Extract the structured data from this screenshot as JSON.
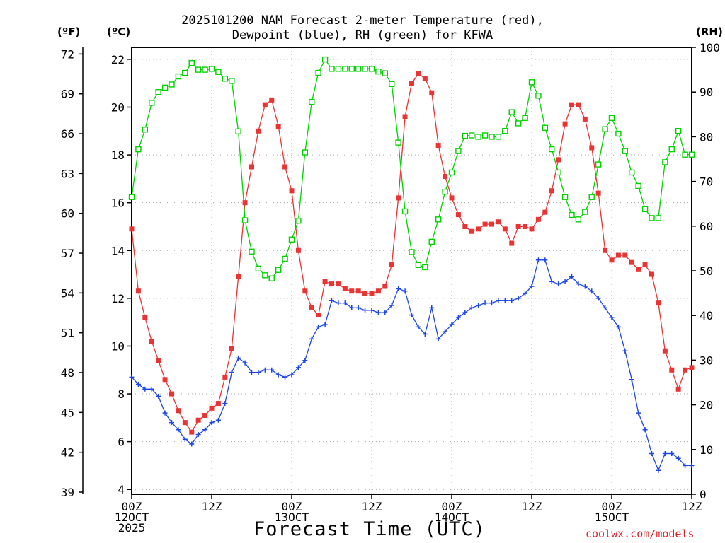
{
  "header": {
    "title_line1": "2025101200 NAM Forecast 2-meter Temperature (red),",
    "title_line2": "Dewpoint (blue), RH (green) for KFWA",
    "unit_f": "(ºF)",
    "unit_c": "(ºC)",
    "unit_rh": "(RH)"
  },
  "footer": {
    "xlabel": "Forecast Time (UTC)",
    "credit": "coolwx.com/models"
  },
  "chart_data": {
    "type": "line",
    "title": "2025101200 NAM Forecast 2-meter Temperature (red), Dewpoint (blue), RH (green) for KFWA",
    "xlabel": "Forecast Time (UTC)",
    "x_unit": "forecast hour",
    "xlim": [
      0,
      84
    ],
    "x_ticks": [
      {
        "x": 0,
        "lines": [
          "00Z",
          "12OCT",
          "2025"
        ]
      },
      {
        "x": 12,
        "lines": [
          "12Z"
        ]
      },
      {
        "x": 24,
        "lines": [
          "00Z",
          "13OCT"
        ]
      },
      {
        "x": 36,
        "lines": [
          "12Z"
        ]
      },
      {
        "x": 48,
        "lines": [
          "00Z",
          "14OCT"
        ]
      },
      {
        "x": 60,
        "lines": [
          "12Z"
        ]
      },
      {
        "x": 72,
        "lines": [
          "00Z",
          "15OCT"
        ]
      },
      {
        "x": 84,
        "lines": [
          "12Z"
        ]
      }
    ],
    "y_axes": {
      "fahrenheit": {
        "label": "(ºF)",
        "ticks": [
          39,
          42,
          45,
          48,
          51,
          54,
          57,
          60,
          63,
          66,
          69,
          72
        ]
      },
      "celsius": {
        "label": "(ºC)",
        "ylim": [
          3.8,
          22.5
        ],
        "ticks": [
          4,
          6,
          8,
          10,
          12,
          14,
          16,
          18,
          20,
          22
        ]
      },
      "rh": {
        "label": "(RH)",
        "ylim": [
          0,
          100
        ],
        "ticks": [
          0,
          10,
          20,
          30,
          40,
          50,
          60,
          70,
          80,
          90,
          100
        ]
      }
    },
    "grid": true,
    "series": [
      {
        "name": "Temperature",
        "axis": "celsius",
        "color": "#ea3434",
        "marker": "filled-square",
        "x": [
          0,
          1,
          2,
          3,
          4,
          5,
          6,
          7,
          8,
          9,
          10,
          11,
          12,
          13,
          14,
          15,
          16,
          17,
          18,
          19,
          20,
          21,
          22,
          23,
          24,
          25,
          26,
          27,
          28,
          29,
          30,
          31,
          32,
          33,
          34,
          35,
          36,
          37,
          38,
          39,
          40,
          41,
          42,
          43,
          44,
          45,
          46,
          47,
          48,
          49,
          50,
          51,
          52,
          53,
          54,
          55,
          56,
          57,
          58,
          59,
          60,
          61,
          62,
          63,
          64,
          65,
          66,
          67,
          68,
          69,
          70,
          71,
          72,
          73,
          74,
          75,
          76,
          77,
          78,
          79,
          80,
          81,
          82,
          83,
          84
        ],
        "values": [
          14.9,
          12.3,
          11.2,
          10.2,
          9.4,
          8.6,
          8.0,
          7.3,
          6.8,
          6.4,
          6.9,
          7.1,
          7.4,
          7.6,
          8.7,
          9.9,
          12.9,
          16.0,
          17.5,
          19.0,
          20.1,
          20.3,
          19.2,
          17.5,
          16.5,
          14.0,
          12.3,
          11.6,
          11.3,
          12.7,
          12.6,
          12.6,
          12.4,
          12.3,
          12.3,
          12.2,
          12.2,
          12.3,
          12.5,
          13.4,
          16.2,
          19.6,
          21.0,
          21.4,
          21.2,
          20.6,
          18.4,
          17.1,
          16.2,
          15.5,
          15.0,
          14.8,
          14.9,
          15.1,
          15.1,
          15.2,
          14.9,
          14.3,
          15.0,
          15.0,
          14.9,
          15.3,
          15.6,
          16.5,
          17.8,
          19.3,
          20.1,
          20.1,
          19.5,
          18.3,
          16.4,
          14.0,
          13.6,
          13.8,
          13.8,
          13.5,
          13.2,
          13.4,
          13.0,
          11.8,
          9.8,
          9.0,
          8.2,
          9.0,
          9.1
        ]
      },
      {
        "name": "Dewpoint",
        "axis": "celsius",
        "color": "#1e46e6",
        "marker": "plus",
        "x": [
          0,
          1,
          2,
          3,
          4,
          5,
          6,
          7,
          8,
          9,
          10,
          11,
          12,
          13,
          14,
          15,
          16,
          17,
          18,
          19,
          20,
          21,
          22,
          23,
          24,
          25,
          26,
          27,
          28,
          29,
          30,
          31,
          32,
          33,
          34,
          35,
          36,
          37,
          38,
          39,
          40,
          41,
          42,
          43,
          44,
          45,
          46,
          47,
          48,
          49,
          50,
          51,
          52,
          53,
          54,
          55,
          56,
          57,
          58,
          59,
          60,
          61,
          62,
          63,
          64,
          65,
          66,
          67,
          68,
          69,
          70,
          71,
          72,
          73,
          74,
          75,
          76,
          77,
          78,
          79,
          80,
          81,
          82,
          83,
          84
        ],
        "values": [
          8.7,
          8.4,
          8.2,
          8.2,
          7.9,
          7.2,
          6.8,
          6.5,
          6.1,
          5.9,
          6.3,
          6.5,
          6.8,
          6.9,
          7.6,
          8.9,
          9.5,
          9.3,
          8.9,
          8.9,
          9.0,
          9.0,
          8.8,
          8.7,
          8.8,
          9.1,
          9.4,
          10.3,
          10.8,
          10.9,
          11.9,
          11.8,
          11.8,
          11.6,
          11.6,
          11.5,
          11.5,
          11.4,
          11.4,
          11.7,
          12.4,
          12.3,
          11.3,
          10.8,
          10.5,
          11.6,
          10.3,
          10.6,
          10.9,
          11.2,
          11.4,
          11.6,
          11.7,
          11.8,
          11.8,
          11.9,
          11.9,
          11.9,
          12.0,
          12.2,
          12.5,
          13.6,
          13.6,
          12.7,
          12.6,
          12.7,
          12.9,
          12.6,
          12.5,
          12.3,
          12.0,
          11.6,
          11.2,
          10.8,
          9.8,
          8.6,
          7.2,
          6.5,
          5.5,
          4.8,
          5.5,
          5.5,
          5.3,
          5.0,
          5.0
        ]
      },
      {
        "name": "RH",
        "axis": "rh",
        "color": "#00d200",
        "marker": "open-square",
        "x": [
          0,
          1,
          2,
          3,
          4,
          5,
          6,
          7,
          8,
          9,
          10,
          11,
          12,
          13,
          14,
          15,
          16,
          17,
          18,
          19,
          20,
          21,
          22,
          23,
          24,
          25,
          26,
          27,
          28,
          29,
          30,
          31,
          32,
          33,
          34,
          35,
          36,
          37,
          38,
          39,
          40,
          41,
          42,
          43,
          44,
          45,
          46,
          47,
          48,
          49,
          50,
          51,
          52,
          53,
          54,
          55,
          56,
          57,
          58,
          59,
          60,
          61,
          62,
          63,
          64,
          65,
          66,
          67,
          68,
          69,
          70,
          71,
          72,
          73,
          74,
          75,
          76,
          77,
          78,
          79,
          80,
          81,
          82,
          83,
          84
        ],
        "values": [
          66.5,
          77.2,
          81.6,
          87.6,
          90.0,
          91.0,
          91.7,
          93.5,
          94.3,
          96.5,
          95.0,
          95.0,
          95.2,
          94.5,
          93.0,
          92.5,
          81.2,
          61.3,
          54.3,
          50.5,
          49.0,
          48.3,
          50.2,
          52.7,
          57.0,
          61.2,
          76.5,
          87.8,
          94.3,
          97.3,
          95.2,
          95.2,
          95.2,
          95.2,
          95.2,
          95.2,
          95.2,
          94.6,
          94.2,
          91.8,
          78.7,
          63.3,
          54.2,
          51.3,
          50.8,
          56.5,
          61.5,
          67.7,
          72.0,
          76.8,
          80.2,
          80.3,
          80.0,
          80.3,
          80.0,
          80.0,
          81.3,
          85.5,
          83.0,
          84.2,
          92.2,
          89.2,
          82.0,
          77.2,
          72.0,
          66.5,
          62.5,
          61.5,
          63.2,
          66.5,
          73.8,
          81.7,
          84.2,
          80.7,
          76.8,
          72.0,
          69.0,
          63.8,
          61.8,
          61.8,
          74.3,
          77.2,
          81.3,
          76.0,
          76.0
        ]
      }
    ]
  }
}
